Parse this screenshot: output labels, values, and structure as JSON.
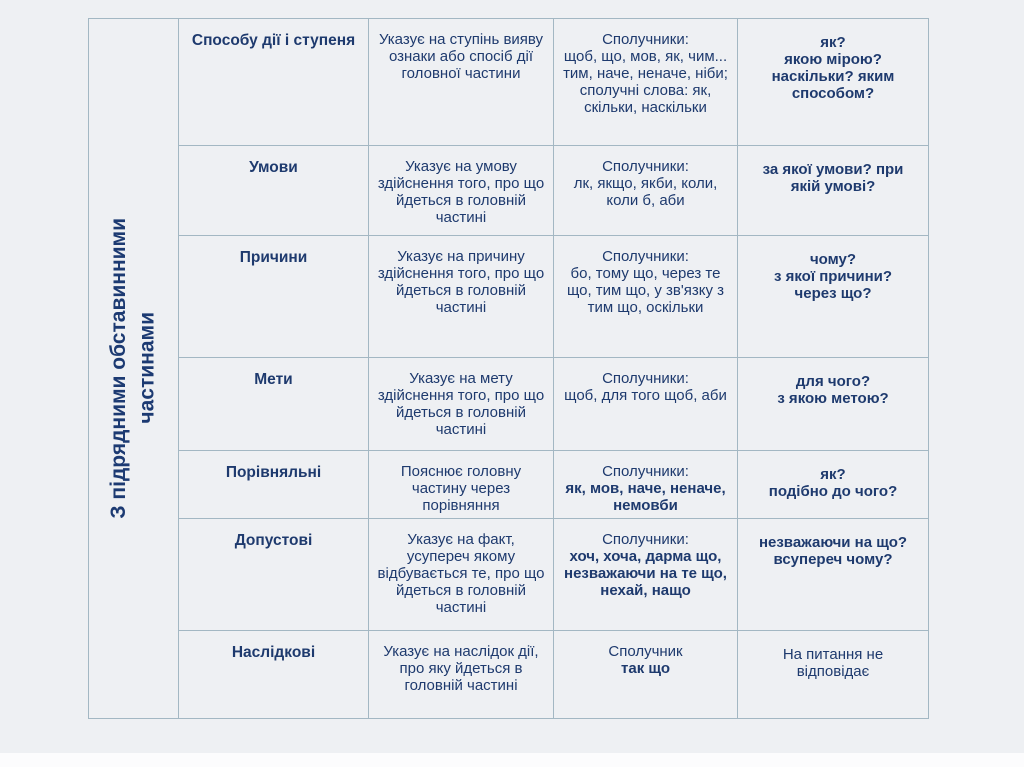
{
  "colors": {
    "background": "#eef0f3",
    "border": "#a3b7c3",
    "text": "#1e3a6e"
  },
  "side_label": {
    "text": "З підрядними обставинними\nчастинами"
  },
  "table": {
    "rows": [
      {
        "type": "Способу дії і ступеня",
        "meaning": "Указує на ступінь вияву ознаки або спосіб дії головної частини",
        "conj_label": "Сполучники:",
        "conj": "щоб, що, мов, як, чим... тим, наче, неначе, ніби; сполучні слова: як, скільки, наскільки",
        "questions": "як?\nякою мірою?\nнаскільки? яким способом?"
      },
      {
        "type": "Умови",
        "meaning": "Указує на умову здійснення того, про що йдеться в головній частині",
        "conj_label": "Сполучники:",
        "conj": "лк, якщо, якби, коли, коли б, аби",
        "questions": "за якої умови? при якій умові?"
      },
      {
        "type": "Причини",
        "meaning": "Указує на причину здійснення того, про що йдеться в головній частині",
        "conj_label": "Сполучники:",
        "conj": "бо, тому що, через те що, тим що, у зв'язку з тим що, оскільки",
        "questions": "чому?\nз якої причини?\nчерез що?"
      },
      {
        "type": "Мети",
        "meaning": "Указує на мету здійснення того, про що йдеться в головній частині",
        "conj_label": "Сполучники:",
        "conj": "щоб, для того щоб, аби",
        "questions": "для чого?\nз якою метою?"
      },
      {
        "type": "Порівняльні",
        "meaning": "Пояснює головну частину через порівняння",
        "conj_label": "Сполучники:",
        "conj": "як, мов, наче, неначе, немовби",
        "questions": "як?\nподібно до чого?"
      },
      {
        "type": "Допустові",
        "meaning": "Указує на факт, усупереч якому відбувається те, про що йдеться в головній частині",
        "conj_label": "Сполучники:",
        "conj": "хоч, хоча, дарма що, незважаючи на те що, нехай, нащо",
        "questions": "незважаючи на що?\nвсупереч чому?"
      },
      {
        "type": "Наслідкові",
        "meaning": "Указує на наслідок дії, про яку йдеться в головній частині",
        "conj_label": "Сполучник",
        "conj": "так що",
        "questions": "На питання не відповідає"
      }
    ]
  }
}
